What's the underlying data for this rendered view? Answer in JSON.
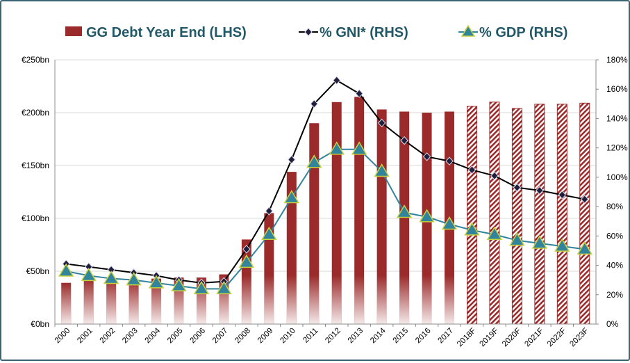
{
  "chart_data": {
    "type": "bar",
    "legend_placement": "top",
    "grid": true,
    "categories": [
      "2000",
      "2001",
      "2002",
      "2003",
      "2004",
      "2005",
      "2006",
      "2007",
      "2008",
      "2009",
      "2010",
      "2011",
      "2012",
      "2013",
      "2014",
      "2015",
      "2016",
      "2017",
      "2018F",
      "2019F",
      "2020F",
      "2021F",
      "2022F",
      "2023F"
    ],
    "forecast_categories": [
      "2018F",
      "2019F",
      "2020F",
      "2021F",
      "2022F",
      "2023F"
    ],
    "left_axis": {
      "ylim": [
        0,
        250
      ],
      "ticks": [
        0,
        50,
        100,
        150,
        200,
        250
      ],
      "tick_labels": [
        "€0bn",
        "€50bn",
        "€100bn",
        "€150bn",
        "€200bn",
        "€250bn"
      ]
    },
    "right_axis": {
      "ylim": [
        0,
        180
      ],
      "ticks": [
        0,
        20,
        40,
        60,
        80,
        100,
        120,
        140,
        160,
        180
      ],
      "tick_labels": [
        "0%",
        "20%",
        "40%",
        "60%",
        "80%",
        "100%",
        "120%",
        "140%",
        "160%",
        "180%"
      ]
    },
    "series": [
      {
        "name": "GG Debt Year End (LHS)",
        "type": "bar",
        "axis": "left",
        "color": "#9b2b2b",
        "values": [
          39,
          43,
          43,
          42,
          43,
          44,
          44,
          47,
          80,
          105,
          144,
          190,
          210,
          215,
          203,
          201,
          200,
          201,
          206,
          210,
          204,
          208,
          208,
          209
        ]
      },
      {
        "name": "% GNI* (RHS)",
        "type": "line",
        "axis": "right",
        "color": "#000000",
        "marker": "diamond",
        "values": [
          41,
          39,
          37,
          35,
          33,
          30,
          28,
          29,
          51,
          77,
          112,
          150,
          166,
          157,
          137,
          125,
          114,
          111,
          105,
          101,
          93,
          91,
          88,
          85
        ]
      },
      {
        "name": "% GDP (RHS)",
        "type": "line",
        "axis": "right",
        "color": "#31849b",
        "marker": "triangle",
        "values": [
          36,
          33,
          31,
          30,
          28,
          26,
          24,
          24,
          42,
          61,
          86,
          110,
          119,
          119,
          104,
          76,
          73,
          68,
          64,
          61,
          57,
          55,
          53,
          51
        ]
      }
    ]
  }
}
